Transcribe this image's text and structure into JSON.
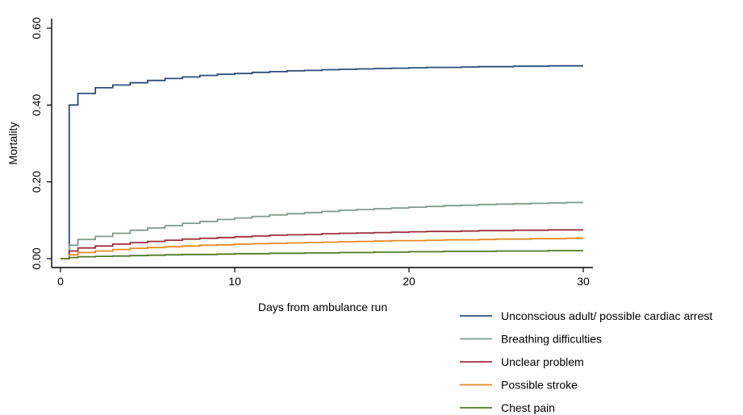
{
  "chart_data": {
    "type": "line",
    "step": true,
    "title": "",
    "xlabel": "Days from ambulance  run",
    "ylabel": "Mortality",
    "xlim": [
      0,
      30
    ],
    "ylim": [
      0,
      0.6
    ],
    "x_ticks": [
      0,
      10,
      20,
      30
    ],
    "x_tick_labels": [
      "0",
      "10",
      "20",
      "30"
    ],
    "y_ticks": [
      0,
      0.2,
      0.4,
      0.6
    ],
    "y_tick_labels": [
      "0.00",
      "0.20",
      "0.40",
      "0.60"
    ],
    "grid": false,
    "legend_position": "bottom-right",
    "series": [
      {
        "name": "Unconscious adult/ possible cardiac arrest",
        "color": "#2b4d7a",
        "points": [
          [
            0,
            0
          ],
          [
            0.5,
            0
          ],
          [
            0.5,
            0.4
          ],
          [
            1,
            0.4
          ],
          [
            1,
            0.43
          ],
          [
            2,
            0.43
          ],
          [
            2,
            0.445
          ],
          [
            3,
            0.445
          ],
          [
            3,
            0.452
          ],
          [
            4,
            0.452
          ],
          [
            4,
            0.458
          ],
          [
            5,
            0.458
          ],
          [
            5,
            0.464
          ],
          [
            6,
            0.464
          ],
          [
            6,
            0.469
          ],
          [
            7,
            0.469
          ],
          [
            7,
            0.473
          ],
          [
            8,
            0.473
          ],
          [
            8,
            0.477
          ],
          [
            9,
            0.477
          ],
          [
            9,
            0.48
          ],
          [
            10,
            0.48
          ],
          [
            10,
            0.482
          ],
          [
            11,
            0.482
          ],
          [
            11,
            0.485
          ],
          [
            12,
            0.485
          ],
          [
            12,
            0.487
          ],
          [
            13,
            0.487
          ],
          [
            13,
            0.489
          ],
          [
            14,
            0.489
          ],
          [
            14,
            0.49
          ],
          [
            15,
            0.49
          ],
          [
            15,
            0.492
          ],
          [
            16,
            0.492
          ],
          [
            16,
            0.493
          ],
          [
            17,
            0.493
          ],
          [
            17,
            0.494
          ],
          [
            18,
            0.494
          ],
          [
            18,
            0.495
          ],
          [
            19,
            0.495
          ],
          [
            19,
            0.496
          ],
          [
            20,
            0.496
          ],
          [
            20,
            0.497
          ],
          [
            21,
            0.497
          ],
          [
            21,
            0.498
          ],
          [
            22,
            0.498
          ],
          [
            22,
            0.498
          ],
          [
            23,
            0.498
          ],
          [
            23,
            0.499
          ],
          [
            24,
            0.499
          ],
          [
            24,
            0.5
          ],
          [
            25,
            0.5
          ],
          [
            25,
            0.5
          ],
          [
            26,
            0.5
          ],
          [
            26,
            0.501
          ],
          [
            27,
            0.501
          ],
          [
            27,
            0.501
          ],
          [
            28,
            0.501
          ],
          [
            28,
            0.502
          ],
          [
            29,
            0.502
          ],
          [
            29,
            0.502
          ],
          [
            30,
            0.502
          ]
        ]
      },
      {
        "name": "Breathing difficulties",
        "color": "#7f9b8c",
        "points": [
          [
            0,
            0
          ],
          [
            0.5,
            0
          ],
          [
            0.5,
            0.035
          ],
          [
            1,
            0.035
          ],
          [
            1,
            0.05
          ],
          [
            2,
            0.05
          ],
          [
            2,
            0.058
          ],
          [
            3,
            0.058
          ],
          [
            3,
            0.066
          ],
          [
            4,
            0.066
          ],
          [
            4,
            0.074
          ],
          [
            5,
            0.074
          ],
          [
            5,
            0.08
          ],
          [
            6,
            0.08
          ],
          [
            6,
            0.086
          ],
          [
            7,
            0.086
          ],
          [
            7,
            0.092
          ],
          [
            8,
            0.092
          ],
          [
            8,
            0.097
          ],
          [
            9,
            0.097
          ],
          [
            9,
            0.102
          ],
          [
            10,
            0.102
          ],
          [
            10,
            0.106
          ],
          [
            11,
            0.106
          ],
          [
            11,
            0.11
          ],
          [
            12,
            0.11
          ],
          [
            12,
            0.114
          ],
          [
            13,
            0.114
          ],
          [
            13,
            0.117
          ],
          [
            14,
            0.117
          ],
          [
            14,
            0.12
          ],
          [
            15,
            0.12
          ],
          [
            15,
            0.123
          ],
          [
            16,
            0.123
          ],
          [
            16,
            0.126
          ],
          [
            17,
            0.126
          ],
          [
            17,
            0.128
          ],
          [
            18,
            0.128
          ],
          [
            18,
            0.13
          ],
          [
            19,
            0.13
          ],
          [
            19,
            0.132
          ],
          [
            20,
            0.132
          ],
          [
            20,
            0.134
          ],
          [
            21,
            0.134
          ],
          [
            21,
            0.136
          ],
          [
            22,
            0.136
          ],
          [
            22,
            0.138
          ],
          [
            23,
            0.138
          ],
          [
            23,
            0.139
          ],
          [
            24,
            0.139
          ],
          [
            24,
            0.141
          ],
          [
            25,
            0.141
          ],
          [
            25,
            0.142
          ],
          [
            26,
            0.142
          ],
          [
            26,
            0.143
          ],
          [
            27,
            0.143
          ],
          [
            27,
            0.144
          ],
          [
            28,
            0.144
          ],
          [
            28,
            0.145
          ],
          [
            29,
            0.145
          ],
          [
            29,
            0.146
          ],
          [
            30,
            0.146
          ]
        ]
      },
      {
        "name": "Unclear problem",
        "color": "#9e2f3f",
        "points": [
          [
            0,
            0
          ],
          [
            0.5,
            0
          ],
          [
            0.5,
            0.02
          ],
          [
            1,
            0.02
          ],
          [
            1,
            0.028
          ],
          [
            2,
            0.028
          ],
          [
            2,
            0.033
          ],
          [
            3,
            0.033
          ],
          [
            3,
            0.038
          ],
          [
            4,
            0.038
          ],
          [
            4,
            0.042
          ],
          [
            5,
            0.042
          ],
          [
            5,
            0.045
          ],
          [
            6,
            0.045
          ],
          [
            6,
            0.048
          ],
          [
            7,
            0.048
          ],
          [
            7,
            0.051
          ],
          [
            8,
            0.051
          ],
          [
            8,
            0.053
          ],
          [
            9,
            0.053
          ],
          [
            9,
            0.055
          ],
          [
            10,
            0.055
          ],
          [
            10,
            0.057
          ],
          [
            11,
            0.057
          ],
          [
            11,
            0.059
          ],
          [
            12,
            0.059
          ],
          [
            12,
            0.061
          ],
          [
            13,
            0.061
          ],
          [
            13,
            0.062
          ],
          [
            14,
            0.062
          ],
          [
            14,
            0.063
          ],
          [
            15,
            0.063
          ],
          [
            15,
            0.065
          ],
          [
            16,
            0.065
          ],
          [
            16,
            0.066
          ],
          [
            17,
            0.066
          ],
          [
            17,
            0.067
          ],
          [
            18,
            0.067
          ],
          [
            18,
            0.068
          ],
          [
            19,
            0.068
          ],
          [
            19,
            0.069
          ],
          [
            20,
            0.069
          ],
          [
            20,
            0.07
          ],
          [
            21,
            0.07
          ],
          [
            21,
            0.071
          ],
          [
            22,
            0.071
          ],
          [
            22,
            0.071
          ],
          [
            23,
            0.071
          ],
          [
            23,
            0.072
          ],
          [
            24,
            0.072
          ],
          [
            24,
            0.073
          ],
          [
            25,
            0.073
          ],
          [
            25,
            0.073
          ],
          [
            26,
            0.073
          ],
          [
            26,
            0.074
          ],
          [
            27,
            0.074
          ],
          [
            27,
            0.074
          ],
          [
            28,
            0.074
          ],
          [
            28,
            0.075
          ],
          [
            29,
            0.075
          ],
          [
            29,
            0.075
          ],
          [
            30,
            0.075
          ]
        ]
      },
      {
        "name": "Possible stroke",
        "color": "#e8891f",
        "points": [
          [
            0,
            0
          ],
          [
            0.5,
            0
          ],
          [
            0.5,
            0.01
          ],
          [
            1,
            0.01
          ],
          [
            1,
            0.016
          ],
          [
            2,
            0.016
          ],
          [
            2,
            0.02
          ],
          [
            3,
            0.02
          ],
          [
            3,
            0.024
          ],
          [
            4,
            0.024
          ],
          [
            4,
            0.027
          ],
          [
            5,
            0.027
          ],
          [
            5,
            0.029
          ],
          [
            6,
            0.029
          ],
          [
            6,
            0.031
          ],
          [
            7,
            0.031
          ],
          [
            7,
            0.033
          ],
          [
            8,
            0.033
          ],
          [
            8,
            0.035
          ],
          [
            9,
            0.035
          ],
          [
            9,
            0.036
          ],
          [
            10,
            0.036
          ],
          [
            10,
            0.038
          ],
          [
            11,
            0.038
          ],
          [
            11,
            0.039
          ],
          [
            12,
            0.039
          ],
          [
            12,
            0.04
          ],
          [
            13,
            0.04
          ],
          [
            13,
            0.041
          ],
          [
            14,
            0.041
          ],
          [
            14,
            0.042
          ],
          [
            15,
            0.042
          ],
          [
            15,
            0.043
          ],
          [
            16,
            0.043
          ],
          [
            16,
            0.044
          ],
          [
            17,
            0.044
          ],
          [
            17,
            0.045
          ],
          [
            18,
            0.045
          ],
          [
            18,
            0.046
          ],
          [
            19,
            0.046
          ],
          [
            19,
            0.047
          ],
          [
            20,
            0.047
          ],
          [
            20,
            0.047
          ],
          [
            21,
            0.047
          ],
          [
            21,
            0.048
          ],
          [
            22,
            0.048
          ],
          [
            22,
            0.049
          ],
          [
            23,
            0.049
          ],
          [
            23,
            0.049
          ],
          [
            24,
            0.049
          ],
          [
            24,
            0.05
          ],
          [
            25,
            0.05
          ],
          [
            25,
            0.051
          ],
          [
            26,
            0.051
          ],
          [
            26,
            0.051
          ],
          [
            27,
            0.051
          ],
          [
            27,
            0.052
          ],
          [
            28,
            0.052
          ],
          [
            28,
            0.052
          ],
          [
            29,
            0.052
          ],
          [
            29,
            0.053
          ],
          [
            30,
            0.053
          ]
        ]
      },
      {
        "name": "Chest pain",
        "color": "#4f7a28",
        "points": [
          [
            0,
            0
          ],
          [
            0.5,
            0
          ],
          [
            0.5,
            0.003
          ],
          [
            1,
            0.003
          ],
          [
            1,
            0.005
          ],
          [
            2,
            0.005
          ],
          [
            2,
            0.006
          ],
          [
            3,
            0.006
          ],
          [
            3,
            0.007
          ],
          [
            4,
            0.007
          ],
          [
            4,
            0.008
          ],
          [
            5,
            0.008
          ],
          [
            5,
            0.009
          ],
          [
            6,
            0.009
          ],
          [
            6,
            0.01
          ],
          [
            7,
            0.01
          ],
          [
            7,
            0.011
          ],
          [
            8,
            0.011
          ],
          [
            8,
            0.011
          ],
          [
            9,
            0.011
          ],
          [
            9,
            0.012
          ],
          [
            10,
            0.012
          ],
          [
            10,
            0.013
          ],
          [
            11,
            0.013
          ],
          [
            11,
            0.013
          ],
          [
            12,
            0.013
          ],
          [
            12,
            0.014
          ],
          [
            13,
            0.014
          ],
          [
            13,
            0.014
          ],
          [
            14,
            0.014
          ],
          [
            14,
            0.015
          ],
          [
            15,
            0.015
          ],
          [
            15,
            0.015
          ],
          [
            16,
            0.015
          ],
          [
            16,
            0.016
          ],
          [
            17,
            0.016
          ],
          [
            17,
            0.016
          ],
          [
            18,
            0.016
          ],
          [
            18,
            0.017
          ],
          [
            19,
            0.017
          ],
          [
            19,
            0.017
          ],
          [
            20,
            0.017
          ],
          [
            20,
            0.018
          ],
          [
            21,
            0.018
          ],
          [
            21,
            0.018
          ],
          [
            22,
            0.018
          ],
          [
            22,
            0.019
          ],
          [
            23,
            0.019
          ],
          [
            23,
            0.019
          ],
          [
            24,
            0.019
          ],
          [
            24,
            0.019
          ],
          [
            25,
            0.019
          ],
          [
            25,
            0.02
          ],
          [
            26,
            0.02
          ],
          [
            26,
            0.02
          ],
          [
            27,
            0.02
          ],
          [
            27,
            0.02
          ],
          [
            28,
            0.02
          ],
          [
            28,
            0.021
          ],
          [
            29,
            0.021
          ],
          [
            29,
            0.021
          ],
          [
            30,
            0.021
          ]
        ]
      }
    ]
  }
}
